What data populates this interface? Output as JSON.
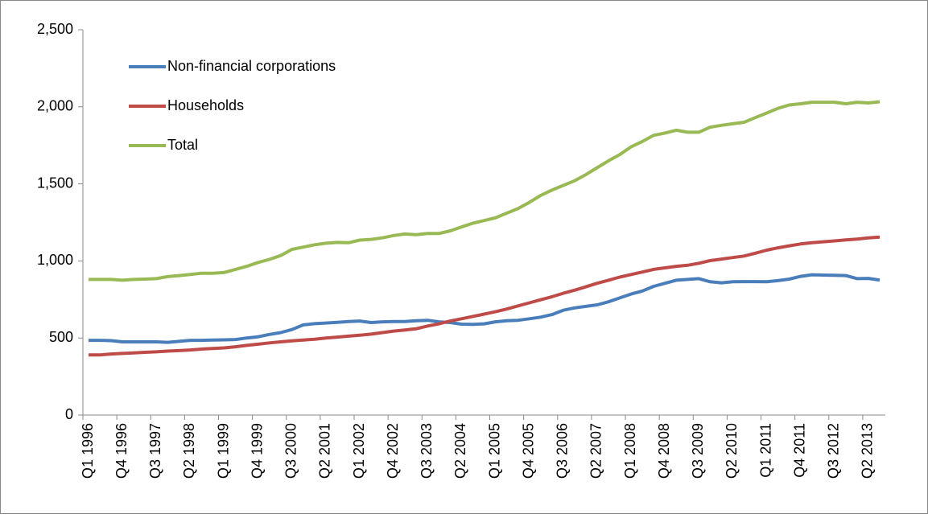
{
  "chart_data": {
    "type": "line",
    "categories": [
      "Q1 1996",
      null,
      null,
      "Q4 1996",
      null,
      null,
      "Q3 1997",
      null,
      null,
      "Q2 1998",
      null,
      null,
      "Q1 1999",
      null,
      null,
      "Q4 1999",
      null,
      null,
      "Q3 2000",
      null,
      null,
      "Q2 2001",
      null,
      null,
      "Q1 2002",
      null,
      null,
      "Q4 2002",
      null,
      null,
      "Q3 2003",
      null,
      null,
      "Q2 2004",
      null,
      null,
      "Q1 2005",
      null,
      null,
      "Q4 2005",
      null,
      null,
      "Q3 2006",
      null,
      null,
      "Q2 2007",
      null,
      null,
      "Q1 2008",
      null,
      null,
      "Q4 2008",
      null,
      null,
      "Q3 2009",
      null,
      null,
      "Q2 2010",
      null,
      null,
      "Q1 2011",
      null,
      null,
      "Q4 2011",
      null,
      null,
      "Q3 2012",
      null,
      null,
      "Q2 2013",
      null
    ],
    "series": [
      {
        "name": "Non-financial corporations",
        "color": "#4a7ebb",
        "values": [
          485,
          485,
          483,
          475,
          475,
          475,
          475,
          472,
          478,
          485,
          485,
          487,
          488,
          490,
          500,
          508,
          523,
          535,
          555,
          585,
          593,
          597,
          602,
          607,
          610,
          600,
          605,
          607,
          607,
          612,
          615,
          605,
          600,
          590,
          588,
          592,
          605,
          612,
          615,
          625,
          635,
          652,
          680,
          695,
          705,
          715,
          735,
          760,
          785,
          805,
          835,
          855,
          875,
          880,
          885,
          865,
          858,
          865,
          866,
          866,
          865,
          872,
          882,
          900,
          910,
          908,
          907,
          905,
          885,
          887,
          876
        ]
      },
      {
        "name": "Households",
        "color": "#be4b48",
        "values": [
          390,
          390,
          396,
          400,
          403,
          407,
          410,
          415,
          418,
          422,
          428,
          432,
          436,
          443,
          452,
          460,
          468,
          475,
          481,
          487,
          492,
          500,
          506,
          512,
          518,
          525,
          535,
          545,
          552,
          560,
          578,
          592,
          610,
          625,
          640,
          655,
          670,
          688,
          708,
          728,
          748,
          768,
          790,
          810,
          832,
          855,
          875,
          895,
          912,
          928,
          945,
          955,
          965,
          972,
          985,
          1002,
          1012,
          1022,
          1032,
          1050,
          1070,
          1085,
          1098,
          1110,
          1118,
          1124,
          1130,
          1136,
          1142,
          1150,
          1155
        ]
      },
      {
        "name": "Total",
        "color": "#98b954",
        "values": [
          880,
          880,
          880,
          875,
          880,
          882,
          885,
          898,
          905,
          912,
          920,
          920,
          925,
          945,
          965,
          990,
          1010,
          1035,
          1075,
          1090,
          1105,
          1115,
          1120,
          1118,
          1135,
          1140,
          1150,
          1165,
          1175,
          1170,
          1178,
          1178,
          1195,
          1220,
          1245,
          1262,
          1280,
          1310,
          1340,
          1380,
          1425,
          1460,
          1490,
          1520,
          1560,
          1605,
          1650,
          1690,
          1740,
          1775,
          1815,
          1830,
          1848,
          1835,
          1835,
          1868,
          1880,
          1890,
          1900,
          1930,
          1960,
          1990,
          2012,
          2020,
          2030,
          2030,
          2030,
          2020,
          2030,
          2025,
          2033
        ]
      }
    ],
    "ylim": [
      0,
      2500
    ],
    "yticks": [
      0,
      500,
      {
        "value": 1000,
        "label": "1,000"
      },
      {
        "value": 1500,
        "label": "1,500"
      },
      {
        "value": 2000,
        "label": "2,000"
      },
      {
        "value": 2500,
        "label": "2,500"
      }
    ],
    "legend": "top-left"
  }
}
